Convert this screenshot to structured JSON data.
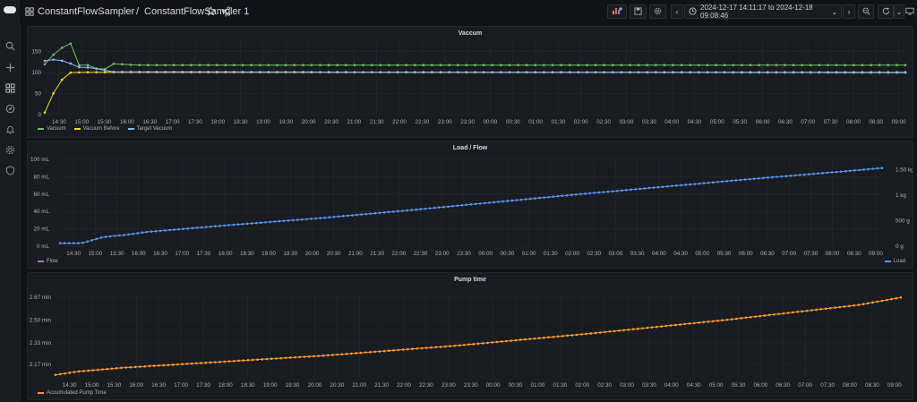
{
  "topbar": {
    "breadcrumb_folder": "ConstantFlowSampler",
    "breadcrumb_sep": "/",
    "breadcrumb_dashboard": "ConstantFlowSampler 1",
    "time_range": "2024-12-17 14:11:17 to 2024-12-18 09:08:46"
  },
  "icons": {
    "sidebar": [
      "search-icon",
      "plus-icon",
      "dashboards-icon",
      "explore-icon",
      "bell-icon",
      "gear-icon",
      "shield-icon"
    ],
    "topbar": [
      "add-panel-icon",
      "save-icon",
      "settings-icon",
      "time-picker-icon",
      "zoom-out-icon",
      "refresh-icon",
      "tv-mode-icon"
    ]
  },
  "colors": {
    "vacuum": "#73bf69",
    "vacuum_before": "#fade2a",
    "target_vacuum": "#8ab8ff",
    "flow": "#b877d9",
    "load": "#5794f2",
    "pump": "#ff9830"
  },
  "time_ticks": [
    "14:30",
    "15:00",
    "15:30",
    "16:00",
    "16:30",
    "17:00",
    "17:30",
    "18:00",
    "18:30",
    "19:00",
    "19:30",
    "20:00",
    "20:30",
    "21:00",
    "21:30",
    "22:00",
    "22:30",
    "23:00",
    "23:30",
    "00:00",
    "00:30",
    "01:00",
    "01:30",
    "02:00",
    "02:30",
    "03:00",
    "03:30",
    "04:00",
    "04:30",
    "05:00",
    "05:30",
    "06:00",
    "06:30",
    "07:00",
    "07:30",
    "08:00",
    "08:30",
    "09:00"
  ],
  "chart_data": [
    {
      "type": "line",
      "title": "Vaccum",
      "x_range": [
        "2024-12-17 14:11:17",
        "2024-12-18 09:08:46"
      ],
      "y_ticks": [
        "0",
        "50",
        "100",
        "150"
      ],
      "ylim": [
        0,
        175
      ],
      "legend_position": "bottom-left",
      "series": [
        {
          "name": "Vacuum",
          "color": "#73bf69",
          "values": [
            [
              0,
              120
            ],
            [
              0.25,
              150
            ],
            [
              0.5,
              168
            ],
            [
              0.6,
              170
            ],
            [
              0.75,
              118
            ],
            [
              1.0,
              118
            ],
            [
              1.25,
              103
            ],
            [
              1.5,
              121
            ],
            [
              1.7,
              120
            ],
            [
              2,
              118
            ],
            [
              18.95,
              118
            ]
          ]
        },
        {
          "name": "Vacuum Before",
          "color": "#fade2a",
          "values": [
            [
              0,
              5
            ],
            [
              0.25,
              65
            ],
            [
              0.5,
              100
            ],
            [
              1.0,
              101
            ],
            [
              18.95,
              101
            ]
          ]
        },
        {
          "name": "Target Vacuum",
          "color": "#8ab8ff",
          "values": [
            [
              0,
              128
            ],
            [
              0.25,
              132
            ],
            [
              0.5,
              125
            ],
            [
              0.75,
              113
            ],
            [
              1.0,
              112
            ],
            [
              1.5,
              102
            ],
            [
              18.95,
              100
            ]
          ]
        }
      ]
    },
    {
      "type": "line",
      "title": "Load / Flow",
      "x_range": [
        "2024-12-17 14:11:17",
        "2024-12-18 09:08:46"
      ],
      "y_ticks_left": [
        "0 mL",
        "20 mL",
        "40 mL",
        "60 mL",
        "80 mL",
        "100 mL"
      ],
      "y_ticks_right": [
        "0 g",
        "500 g",
        "1 kg",
        "1.50 kg"
      ],
      "ylim_left": [
        0,
        100
      ],
      "ylim_right": [
        0,
        1.7
      ],
      "legend_left": "Flow",
      "legend_right": "Load",
      "series": [
        {
          "name": "Flow",
          "color": "#b877d9",
          "values": []
        },
        {
          "name": "Load",
          "color": "#5794f2",
          "axis": "right",
          "values": [
            [
              0,
              0.06
            ],
            [
              0.5,
              0.06
            ],
            [
              1.0,
              0.18
            ],
            [
              1.5,
              0.22
            ],
            [
              2,
              0.28
            ],
            [
              4,
              0.42
            ],
            [
              6,
              0.55
            ],
            [
              8,
              0.7
            ],
            [
              10,
              0.86
            ],
            [
              12,
              1.02
            ],
            [
              14,
              1.17
            ],
            [
              16,
              1.32
            ],
            [
              18,
              1.46
            ],
            [
              18.95,
              1.53
            ]
          ]
        }
      ]
    },
    {
      "type": "line",
      "title": "Pump time",
      "x_range": [
        "2024-12-17 14:11:17",
        "2024-12-18 09:08:46"
      ],
      "y_ticks": [
        "2.17 min",
        "2.33 min",
        "2.50 min",
        "2.67 min"
      ],
      "ylim": [
        2.07,
        2.69
      ],
      "legend_position": "bottom-left",
      "series": [
        {
          "name": "Accumulated Pump Time",
          "color": "#ff9830",
          "values": [
            [
              0,
              2.092
            ],
            [
              0.5,
              2.117
            ],
            [
              1.5,
              2.145
            ],
            [
              3,
              2.175
            ],
            [
              6,
              2.235
            ],
            [
              9,
              2.31
            ],
            [
              12,
              2.4
            ],
            [
              15,
              2.5
            ],
            [
              18,
              2.612
            ],
            [
              18.95,
              2.668
            ]
          ]
        }
      ]
    }
  ]
}
